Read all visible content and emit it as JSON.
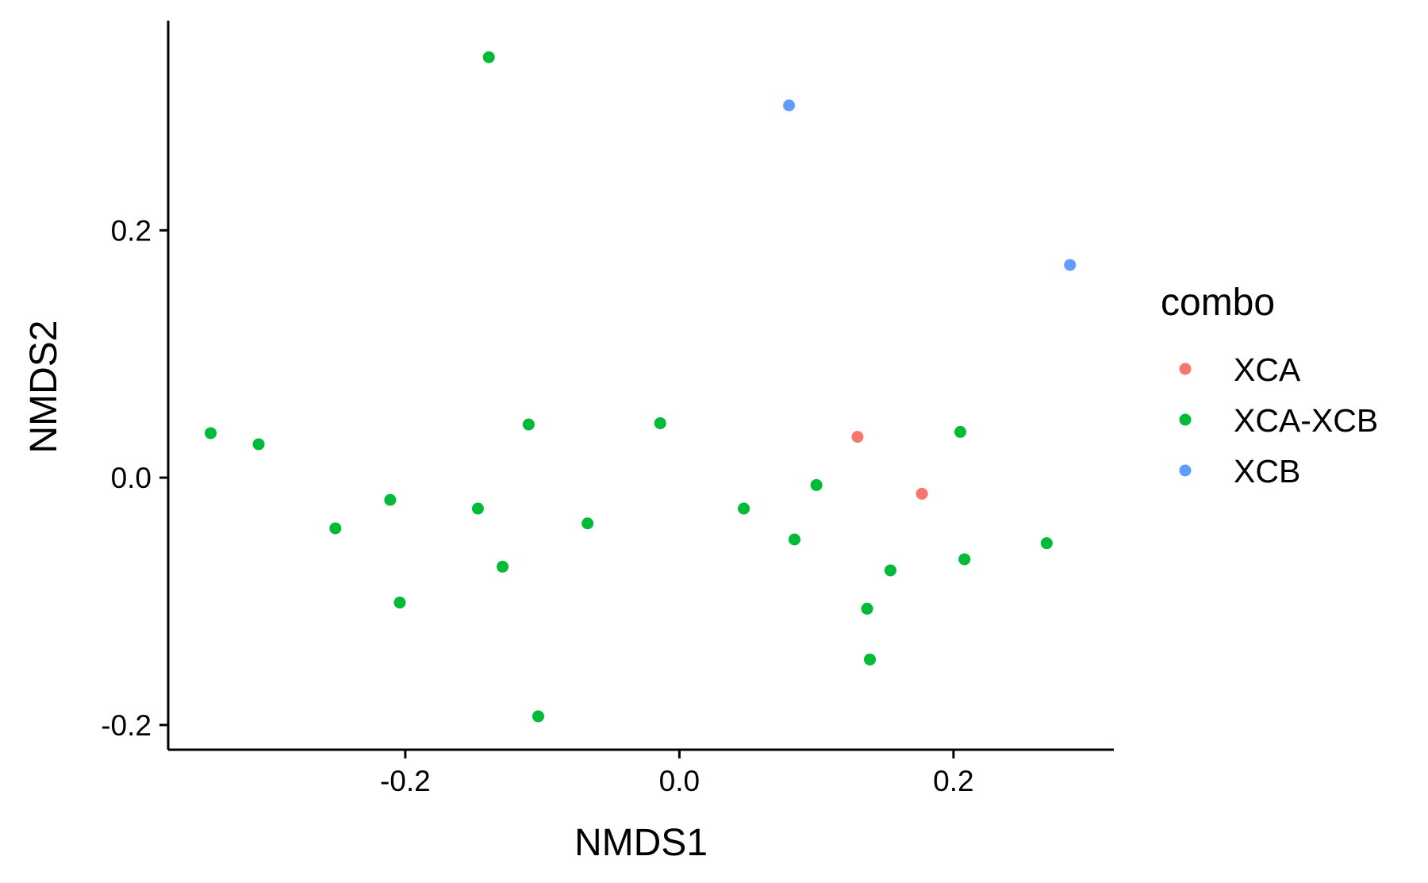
{
  "chart_data": {
    "type": "scatter",
    "title": "",
    "xlabel": "NMDS1",
    "ylabel": "NMDS2",
    "xlim": [
      -0.373,
      0.317
    ],
    "ylim": [
      -0.22,
      0.367
    ],
    "x_ticks": [
      {
        "value": -0.2,
        "label": "-0.2"
      },
      {
        "value": 0.0,
        "label": "0.0"
      },
      {
        "value": 0.2,
        "label": "0.2"
      }
    ],
    "y_ticks": [
      {
        "value": -0.2,
        "label": "-0.2"
      },
      {
        "value": 0.0,
        "label": "0.0"
      },
      {
        "value": 0.2,
        "label": "0.2"
      }
    ],
    "grid": false,
    "legend": {
      "title": "combo",
      "position": "right"
    },
    "series": [
      {
        "name": "XCA",
        "color": "#F8766D",
        "points": [
          {
            "x": 0.13,
            "y": 0.033
          },
          {
            "x": 0.177,
            "y": -0.013
          }
        ]
      },
      {
        "name": "XCA-XCB",
        "color": "#00BA38",
        "points": [
          {
            "x": -0.342,
            "y": 0.036
          },
          {
            "x": -0.307,
            "y": 0.027
          },
          {
            "x": -0.251,
            "y": -0.041
          },
          {
            "x": -0.211,
            "y": -0.018
          },
          {
            "x": -0.204,
            "y": -0.101
          },
          {
            "x": -0.147,
            "y": -0.025
          },
          {
            "x": -0.139,
            "y": 0.34
          },
          {
            "x": -0.129,
            "y": -0.072
          },
          {
            "x": -0.11,
            "y": 0.043
          },
          {
            "x": -0.103,
            "y": -0.193
          },
          {
            "x": -0.067,
            "y": -0.037
          },
          {
            "x": -0.014,
            "y": 0.044
          },
          {
            "x": 0.047,
            "y": -0.025
          },
          {
            "x": 0.084,
            "y": -0.05
          },
          {
            "x": 0.1,
            "y": -0.006
          },
          {
            "x": 0.137,
            "y": -0.106
          },
          {
            "x": 0.139,
            "y": -0.147
          },
          {
            "x": 0.154,
            "y": -0.075
          },
          {
            "x": 0.205,
            "y": 0.037
          },
          {
            "x": 0.208,
            "y": -0.066
          },
          {
            "x": 0.268,
            "y": -0.053
          }
        ]
      },
      {
        "name": "XCB",
        "color": "#619CFF",
        "points": [
          {
            "x": 0.08,
            "y": 0.301
          },
          {
            "x": 0.285,
            "y": 0.172
          }
        ]
      }
    ]
  }
}
